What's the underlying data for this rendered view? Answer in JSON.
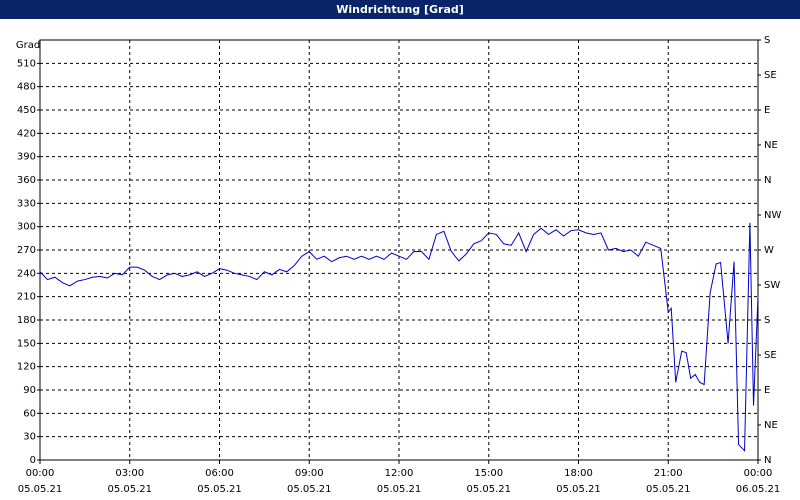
{
  "chart_data": {
    "type": "line",
    "title": "Windrichtung [Grad]",
    "ylabel": "Grad",
    "color": "#0000cc",
    "grid": true,
    "x": [
      0,
      0.25,
      0.5,
      0.75,
      1,
      1.25,
      1.5,
      1.75,
      2,
      2.25,
      2.5,
      2.75,
      3,
      3.25,
      3.5,
      3.75,
      4,
      4.25,
      4.5,
      4.75,
      5,
      5.25,
      5.5,
      5.75,
      6,
      6.25,
      6.5,
      6.75,
      7,
      7.25,
      7.5,
      7.75,
      8,
      8.25,
      8.5,
      8.75,
      9,
      9.25,
      9.5,
      9.75,
      10,
      10.25,
      10.5,
      10.75,
      11,
      11.25,
      11.5,
      11.75,
      12,
      12.25,
      12.5,
      12.75,
      13,
      13.25,
      13.5,
      13.75,
      14,
      14.25,
      14.5,
      14.75,
      15,
      15.25,
      15.5,
      15.75,
      16,
      16.25,
      16.5,
      16.75,
      17,
      17.25,
      17.5,
      17.75,
      18,
      18.25,
      18.5,
      18.75,
      19,
      19.25,
      19.5,
      19.75,
      20,
      20.25,
      20.5,
      20.75,
      21,
      21.1,
      21.25,
      21.45,
      21.6,
      21.75,
      21.9,
      22.05,
      22.2,
      22.4,
      22.6,
      22.75,
      23,
      23.2,
      23.35,
      23.55,
      23.73,
      23.85,
      24
    ],
    "values": [
      242,
      232,
      235,
      228,
      224,
      230,
      232,
      235,
      236,
      234,
      240,
      238,
      248,
      248,
      244,
      236,
      232,
      238,
      240,
      236,
      238,
      242,
      236,
      240,
      246,
      244,
      240,
      238,
      236,
      232,
      242,
      238,
      245,
      242,
      250,
      262,
      268,
      258,
      262,
      255,
      260,
      262,
      258,
      262,
      258,
      262,
      258,
      266,
      262,
      258,
      268,
      268,
      258,
      290,
      294,
      268,
      256,
      265,
      278,
      282,
      292,
      290,
      278,
      276,
      292,
      268,
      290,
      298,
      290,
      296,
      288,
      295,
      296,
      292,
      290,
      292,
      270,
      272,
      268,
      270,
      262,
      280,
      276,
      272,
      190,
      195,
      100,
      140,
      138,
      105,
      110,
      100,
      97,
      215,
      252,
      254,
      150,
      255,
      20,
      12,
      305,
      70,
      210
    ],
    "xlim": [
      0,
      24
    ],
    "xticks": [
      {
        "value": 0,
        "label": "00:00"
      },
      {
        "value": 3,
        "label": "03:00"
      },
      {
        "value": 6,
        "label": "06:00"
      },
      {
        "value": 9,
        "label": "09:00"
      },
      {
        "value": 12,
        "label": "12:00"
      },
      {
        "value": 15,
        "label": "15:00"
      },
      {
        "value": 18,
        "label": "18:00"
      },
      {
        "value": 21,
        "label": "21:00"
      },
      {
        "value": 24,
        "label": "00:00"
      }
    ],
    "xtick_dates": [
      "05.05.21",
      "05.05.21",
      "05.05.21",
      "05.05.21",
      "05.05.21",
      "05.05.21",
      "05.05.21",
      "05.05.21",
      "06.05.21"
    ],
    "ylim": [
      0,
      540
    ],
    "yticks": [
      0,
      30,
      60,
      90,
      120,
      150,
      180,
      210,
      240,
      270,
      300,
      330,
      360,
      390,
      420,
      450,
      480,
      510
    ],
    "y2lim": [
      0,
      540
    ],
    "y2ticks": [
      {
        "value": 0,
        "label": "N"
      },
      {
        "value": 45,
        "label": "NE"
      },
      {
        "value": 90,
        "label": "E"
      },
      {
        "value": 135,
        "label": "SE"
      },
      {
        "value": 180,
        "label": "S"
      },
      {
        "value": 225,
        "label": "SW"
      },
      {
        "value": 270,
        "label": "W"
      },
      {
        "value": 315,
        "label": "NW"
      },
      {
        "value": 360,
        "label": "N"
      },
      {
        "value": 405,
        "label": "NE"
      },
      {
        "value": 450,
        "label": "E"
      },
      {
        "value": 495,
        "label": "SE"
      },
      {
        "value": 540,
        "label": "S"
      }
    ]
  }
}
